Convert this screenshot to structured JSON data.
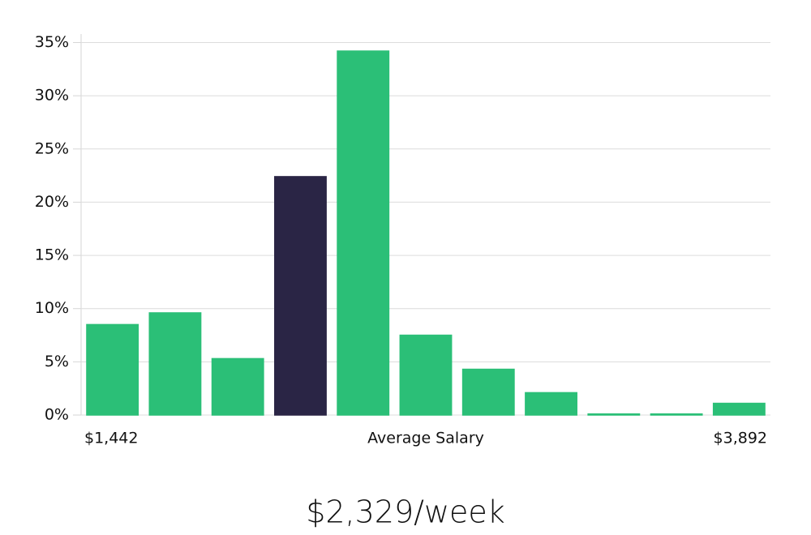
{
  "chart_data": {
    "type": "bar",
    "categories": [
      null,
      null,
      null,
      null,
      null,
      null,
      null,
      null,
      null,
      null,
      null
    ],
    "values": [
      8.5,
      9.6,
      5.3,
      22.4,
      34.2,
      7.5,
      4.3,
      2.1,
      0.1,
      0.1,
      1.1
    ],
    "color": "#2bbf77",
    "highlight_index": 3,
    "highlight_color": "#2a2545",
    "ylim": [
      0,
      35.8
    ],
    "yticks": [
      {
        "value": 0,
        "label": "0%"
      },
      {
        "value": 5,
        "label": "5%"
      },
      {
        "value": 10,
        "label": "10%"
      },
      {
        "value": 15,
        "label": "15%"
      },
      {
        "value": 20,
        "label": "20%"
      },
      {
        "value": 25,
        "label": "25%"
      },
      {
        "value": 30,
        "label": "30%"
      },
      {
        "value": 35,
        "label": "35%"
      }
    ],
    "grid": true,
    "x_min_label": "$1,442",
    "x_center_label": "Average Salary",
    "x_max_label": "$3,892",
    "footer": "$2,329/week"
  }
}
